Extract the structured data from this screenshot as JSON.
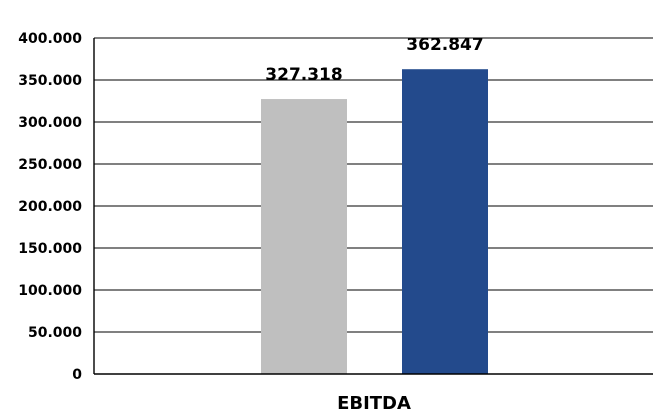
{
  "chart_data": {
    "type": "bar",
    "categories": [
      "EBITDA"
    ],
    "series": [
      {
        "values": [
          327.318
        ],
        "color": "#bfbfbf",
        "label": "327.318"
      },
      {
        "values": [
          362.847
        ],
        "color": "#234a8c",
        "label": "362.847"
      }
    ],
    "ylim": [
      0,
      400
    ],
    "y_ticks": [
      {
        "value": 0,
        "label": "0"
      },
      {
        "value": 50,
        "label": "50.000"
      },
      {
        "value": 100,
        "label": "100.000"
      },
      {
        "value": 150,
        "label": "150.000"
      },
      {
        "value": 200,
        "label": "200.000"
      },
      {
        "value": 250,
        "label": "250.000"
      },
      {
        "value": 300,
        "label": "300.000"
      },
      {
        "value": 350,
        "label": "350.000"
      },
      {
        "value": 400,
        "label": "400.000"
      }
    ],
    "grid": true,
    "legend": "none",
    "title": "",
    "xlabel": "",
    "ylabel": ""
  }
}
